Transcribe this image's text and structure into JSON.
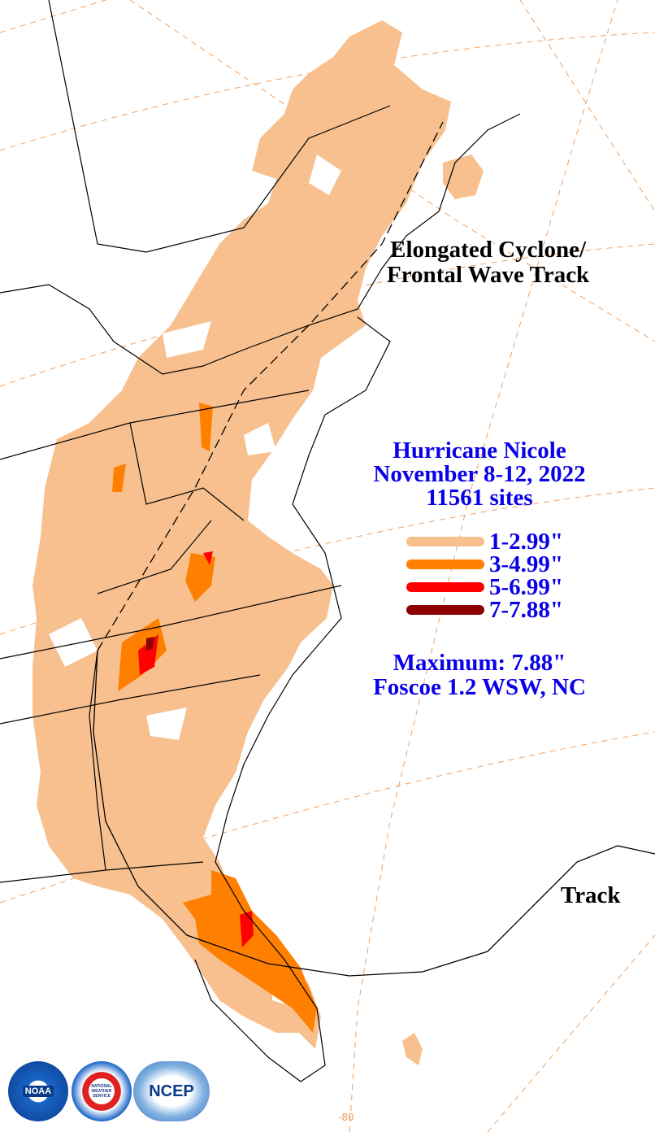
{
  "map": {
    "track_title_line1": "Elongated Cyclone/",
    "track_title_line2": "Frontal Wave Track",
    "track_label": "Track",
    "longitude_label": "-80",
    "storm": {
      "name": "Hurricane Nicole",
      "dates": "November 8-12, 2022",
      "sites": "11561 sites"
    },
    "legend": [
      {
        "label": "1-2.99\"",
        "color": "#f7c08e"
      },
      {
        "label": "3-4.99\"",
        "color": "#ff7f00"
      },
      {
        "label": "5-6.99\"",
        "color": "#ff0000"
      },
      {
        "label": "7-7.88\"",
        "color": "#8b0000"
      }
    ],
    "maximum": "Maximum:  7.88\"",
    "max_location": "Foscoe 1.2 WSW, NC",
    "colors": {
      "rain_light": "#f7c08e",
      "rain_orange": "#ff7f00",
      "rain_red": "#ff0000",
      "rain_dark": "#8b0000",
      "grid": "#f0a060",
      "text_blue": "#0a00e8"
    },
    "logos": [
      {
        "name": "noaa-logo",
        "text": "NOAA"
      },
      {
        "name": "nws-logo",
        "text": "NATIONAL WEATHER SERVICE"
      },
      {
        "name": "ncep-logo",
        "text": "NCEP"
      }
    ]
  }
}
